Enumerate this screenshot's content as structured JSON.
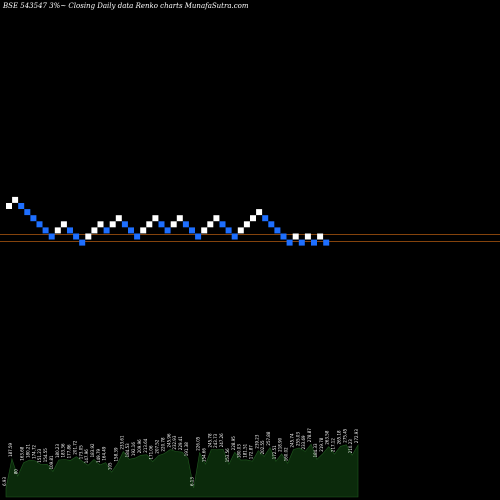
{
  "header": {
    "title": "BSE 543547 3%~  Closing Daily data  Renko  charts MunafaSutra.com"
  },
  "colors": {
    "background": "#000000",
    "up_brick": "#ffffff",
    "down_brick": "#1e6fff",
    "reference_line": "#b05a10",
    "volume_fill": "#0b2a0b",
    "volume_stroke": "#1f5a1f",
    "volume_label": "#ffffff"
  },
  "chart_data": {
    "type": "renko",
    "title": "BSE 543547 3%~  Closing Daily data  Renko  charts MunafaSutra.com",
    "brick_size_label": "3%",
    "bricks": [
      {
        "dir": "up",
        "level": 0
      },
      {
        "dir": "up",
        "level": 1
      },
      {
        "dir": "down",
        "level": 0
      },
      {
        "dir": "down",
        "level": -1
      },
      {
        "dir": "down",
        "level": -2
      },
      {
        "dir": "down",
        "level": -3
      },
      {
        "dir": "down",
        "level": -4
      },
      {
        "dir": "down",
        "level": -5
      },
      {
        "dir": "up",
        "level": -4
      },
      {
        "dir": "up",
        "level": -3
      },
      {
        "dir": "down",
        "level": -4
      },
      {
        "dir": "down",
        "level": -5
      },
      {
        "dir": "down",
        "level": -6
      },
      {
        "dir": "up",
        "level": -5
      },
      {
        "dir": "up",
        "level": -4
      },
      {
        "dir": "up",
        "level": -3
      },
      {
        "dir": "down",
        "level": -4
      },
      {
        "dir": "up",
        "level": -3
      },
      {
        "dir": "up",
        "level": -2
      },
      {
        "dir": "down",
        "level": -3
      },
      {
        "dir": "down",
        "level": -4
      },
      {
        "dir": "down",
        "level": -5
      },
      {
        "dir": "up",
        "level": -4
      },
      {
        "dir": "up",
        "level": -3
      },
      {
        "dir": "up",
        "level": -2
      },
      {
        "dir": "down",
        "level": -3
      },
      {
        "dir": "down",
        "level": -4
      },
      {
        "dir": "up",
        "level": -3
      },
      {
        "dir": "up",
        "level": -2
      },
      {
        "dir": "down",
        "level": -3
      },
      {
        "dir": "down",
        "level": -4
      },
      {
        "dir": "down",
        "level": -5
      },
      {
        "dir": "up",
        "level": -4
      },
      {
        "dir": "up",
        "level": -3
      },
      {
        "dir": "up",
        "level": -2
      },
      {
        "dir": "down",
        "level": -3
      },
      {
        "dir": "down",
        "level": -4
      },
      {
        "dir": "down",
        "level": -5
      },
      {
        "dir": "up",
        "level": -4
      },
      {
        "dir": "up",
        "level": -3
      },
      {
        "dir": "up",
        "level": -2
      },
      {
        "dir": "up",
        "level": -1
      },
      {
        "dir": "down",
        "level": -2
      },
      {
        "dir": "down",
        "level": -3
      },
      {
        "dir": "down",
        "level": -4
      },
      {
        "dir": "down",
        "level": -5
      },
      {
        "dir": "down",
        "level": -6
      },
      {
        "dir": "up",
        "level": -5
      },
      {
        "dir": "down",
        "level": -6
      },
      {
        "dir": "up",
        "level": -5
      },
      {
        "dir": "down",
        "level": -6
      },
      {
        "dir": "up",
        "level": -5
      },
      {
        "dir": "down",
        "level": -6
      }
    ],
    "reference_lines": [
      "high",
      "low"
    ],
    "volume_labels": [
      "6.93",
      "187.59",
      "80",
      "163.68",
      "180.21",
      "174.72",
      "151.23",
      "154.55",
      "109.81",
      "180.23",
      "183.36",
      "177.86",
      "201.72",
      "173.05",
      "147.96",
      "183.92",
      "149.79",
      "164.49",
      "105",
      "158.39",
      "233.61",
      "184.53",
      "192.16",
      "209.96",
      "213.64",
      "171.06",
      "207.52",
      "220.78",
      "245.96",
      "232.93",
      "229.41",
      "191.38",
      "6.13",
      "226.05",
      "154.66",
      "245.78",
      "243.73",
      "247.26",
      "153.56",
      "228.95",
      "180.03",
      "181.51",
      "172.87",
      "239.23",
      "202.55",
      "257.88",
      "172.51",
      "218.90",
      "160.02",
      "245.74",
      "255.03",
      "233.69",
      "278.87",
      "184.33",
      "219.78",
      "263.58",
      "217.12",
      "265.18",
      "275.45",
      "210.23",
      "272.93"
    ]
  }
}
